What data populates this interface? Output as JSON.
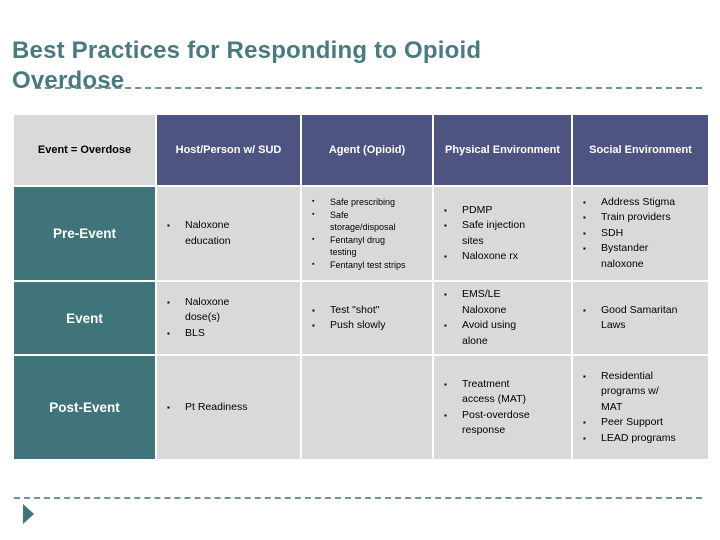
{
  "slide": {
    "title": "Best Practices for Responding to Opioid Overdose"
  },
  "colors": {
    "title_text": "#4A7A81",
    "header_bg": "#4E5481",
    "phase_label_bg": "#3F747A",
    "body_cell_bg": "#D9D9D9",
    "corner_cell_bg": "#D9D9D9",
    "dashed_line": "#73909c",
    "arrow": "#3F747A"
  },
  "table": {
    "headers": [
      "Event = Overdose",
      "Host/Person w/ SUD",
      "Agent (Opioid)",
      "Physical Environment",
      "Social Environment"
    ],
    "rows": [
      {
        "label": "Pre-Event",
        "host": [
          "Naloxone education"
        ],
        "agent": [
          "Safe prescribing",
          "Safe storage/disposal",
          "Fentanyl drug testing",
          "Fentanyl test strips"
        ],
        "physical": [
          "PDMP",
          "Safe injection sites",
          "Naloxone rx"
        ],
        "social": [
          "Address Stigma",
          "Train providers",
          "SDH",
          "Bystander naloxone"
        ]
      },
      {
        "label": "Event",
        "host": [
          "Naloxone dose(s)",
          "BLS"
        ],
        "agent": [
          "Test \"shot\"",
          "Push slowly"
        ],
        "physical": [
          "EMS/LE Naloxone",
          "Avoid using alone"
        ],
        "social": [
          "Good Samaritan Laws"
        ]
      },
      {
        "label": "Post-Event",
        "host": [
          "Pt Readiness"
        ],
        "agent": [],
        "physical": [
          "Treatment access (MAT)",
          "Post-overdose response"
        ],
        "social": [
          "Residential programs w/ MAT",
          "Peer Support",
          "LEAD programs"
        ]
      }
    ]
  }
}
